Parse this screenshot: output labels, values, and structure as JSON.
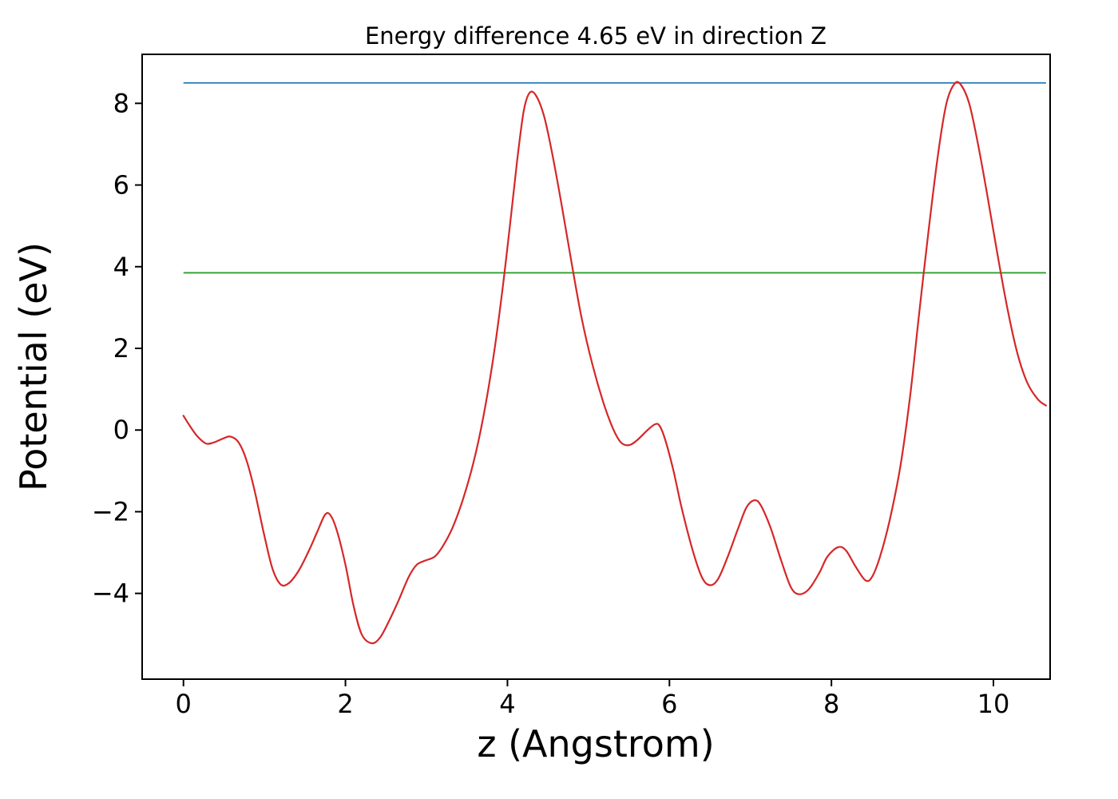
{
  "chart_data": {
    "type": "line",
    "title": "Energy difference 4.65 eV in direction Z",
    "xlabel": "z (Angstrom)",
    "ylabel": "Potential (eV)",
    "xlim": [
      -0.51,
      10.7
    ],
    "ylim": [
      -6.1,
      9.2
    ],
    "xticks": [
      0,
      2,
      4,
      6,
      8,
      10
    ],
    "yticks": [
      -4,
      -2,
      0,
      2,
      4,
      6,
      8
    ],
    "grid": false,
    "legend": false,
    "energy_difference_ev": "4.65",
    "direction": "Z",
    "series": [
      {
        "name": "upper-level",
        "kind": "hline",
        "color": "#1f77b4",
        "y": 8.5,
        "x_start": 0.0,
        "x_end": 10.65
      },
      {
        "name": "lower-level",
        "kind": "hline",
        "color": "#2ca02c",
        "y": 3.85,
        "x_start": 0.0,
        "x_end": 10.65
      },
      {
        "name": "potential",
        "kind": "curve",
        "color": "#d62728",
        "points": [
          [
            0.0,
            0.35
          ],
          [
            0.08,
            0.1
          ],
          [
            0.17,
            -0.15
          ],
          [
            0.28,
            -0.33
          ],
          [
            0.38,
            -0.3
          ],
          [
            0.5,
            -0.2
          ],
          [
            0.58,
            -0.16
          ],
          [
            0.68,
            -0.3
          ],
          [
            0.78,
            -0.75
          ],
          [
            0.88,
            -1.5
          ],
          [
            1.0,
            -2.6
          ],
          [
            1.1,
            -3.4
          ],
          [
            1.2,
            -3.78
          ],
          [
            1.3,
            -3.75
          ],
          [
            1.42,
            -3.45
          ],
          [
            1.55,
            -2.95
          ],
          [
            1.65,
            -2.5
          ],
          [
            1.75,
            -2.07
          ],
          [
            1.82,
            -2.1
          ],
          [
            1.9,
            -2.5
          ],
          [
            2.0,
            -3.3
          ],
          [
            2.1,
            -4.3
          ],
          [
            2.2,
            -5.0
          ],
          [
            2.32,
            -5.22
          ],
          [
            2.42,
            -5.1
          ],
          [
            2.52,
            -4.75
          ],
          [
            2.65,
            -4.2
          ],
          [
            2.78,
            -3.6
          ],
          [
            2.88,
            -3.3
          ],
          [
            2.98,
            -3.2
          ],
          [
            3.1,
            -3.1
          ],
          [
            3.2,
            -2.85
          ],
          [
            3.32,
            -2.4
          ],
          [
            3.45,
            -1.7
          ],
          [
            3.58,
            -0.8
          ],
          [
            3.7,
            0.3
          ],
          [
            3.82,
            1.7
          ],
          [
            3.93,
            3.3
          ],
          [
            4.03,
            5.0
          ],
          [
            4.12,
            6.6
          ],
          [
            4.2,
            7.8
          ],
          [
            4.27,
            8.25
          ],
          [
            4.35,
            8.2
          ],
          [
            4.45,
            7.7
          ],
          [
            4.55,
            6.8
          ],
          [
            4.67,
            5.5
          ],
          [
            4.8,
            4.0
          ],
          [
            4.92,
            2.7
          ],
          [
            5.05,
            1.6
          ],
          [
            5.18,
            0.7
          ],
          [
            5.3,
            0.05
          ],
          [
            5.4,
            -0.3
          ],
          [
            5.5,
            -0.37
          ],
          [
            5.6,
            -0.25
          ],
          [
            5.72,
            -0.02
          ],
          [
            5.82,
            0.14
          ],
          [
            5.88,
            0.1
          ],
          [
            5.95,
            -0.25
          ],
          [
            6.05,
            -1.0
          ],
          [
            6.15,
            -1.9
          ],
          [
            6.28,
            -2.9
          ],
          [
            6.4,
            -3.6
          ],
          [
            6.5,
            -3.8
          ],
          [
            6.6,
            -3.65
          ],
          [
            6.72,
            -3.1
          ],
          [
            6.85,
            -2.4
          ],
          [
            6.95,
            -1.9
          ],
          [
            7.05,
            -1.72
          ],
          [
            7.13,
            -1.85
          ],
          [
            7.25,
            -2.4
          ],
          [
            7.38,
            -3.2
          ],
          [
            7.5,
            -3.85
          ],
          [
            7.6,
            -4.02
          ],
          [
            7.72,
            -3.9
          ],
          [
            7.85,
            -3.5
          ],
          [
            7.95,
            -3.1
          ],
          [
            8.08,
            -2.87
          ],
          [
            8.18,
            -2.95
          ],
          [
            8.3,
            -3.35
          ],
          [
            8.42,
            -3.68
          ],
          [
            8.5,
            -3.6
          ],
          [
            8.6,
            -3.1
          ],
          [
            8.72,
            -2.2
          ],
          [
            8.85,
            -0.9
          ],
          [
            8.97,
            0.8
          ],
          [
            9.08,
            2.8
          ],
          [
            9.2,
            4.9
          ],
          [
            9.32,
            6.8
          ],
          [
            9.42,
            8.0
          ],
          [
            9.52,
            8.48
          ],
          [
            9.6,
            8.45
          ],
          [
            9.7,
            8.0
          ],
          [
            9.8,
            7.1
          ],
          [
            9.92,
            5.8
          ],
          [
            10.05,
            4.3
          ],
          [
            10.18,
            2.9
          ],
          [
            10.3,
            1.85
          ],
          [
            10.42,
            1.15
          ],
          [
            10.55,
            0.75
          ],
          [
            10.65,
            0.6
          ]
        ]
      }
    ]
  }
}
